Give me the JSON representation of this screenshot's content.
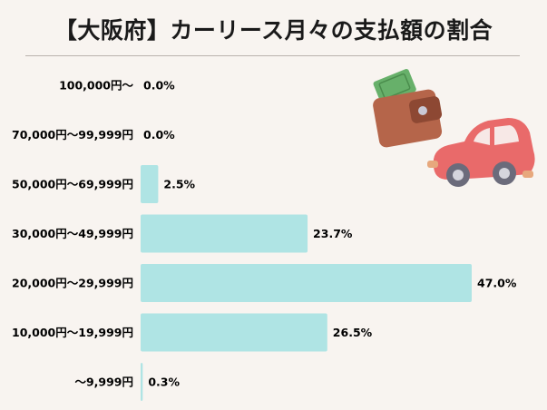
{
  "title": "【大阪府】カーリース月々の支払額の割合",
  "chart_data": {
    "type": "bar",
    "orientation": "horizontal",
    "title": "【大阪府】カーリース月々の支払額の割合",
    "categories": [
      "100,000円〜",
      "70,000円〜99,999円",
      "50,000円〜69,999円",
      "30,000円〜49,999円",
      "20,000円〜29,999円",
      "10,000円〜19,999円",
      "〜9,999円"
    ],
    "values": [
      0.0,
      0.0,
      2.5,
      23.7,
      47.0,
      26.5,
      0.3
    ],
    "value_labels": [
      "0.0%",
      "0.0%",
      "2.5%",
      "23.7%",
      "47.0%",
      "26.5%",
      "0.3%"
    ],
    "unit": "%",
    "xlim": [
      0,
      47.0
    ],
    "grid": false,
    "legend": "none",
    "bar_color": "#afe4e4"
  },
  "colors": {
    "background": "#f8f4f0",
    "bar": "#afe4e4",
    "car_body": "#e96a6a",
    "wallet": "#b5654a"
  },
  "illustration": [
    "wallet-icon",
    "car-icon"
  ]
}
